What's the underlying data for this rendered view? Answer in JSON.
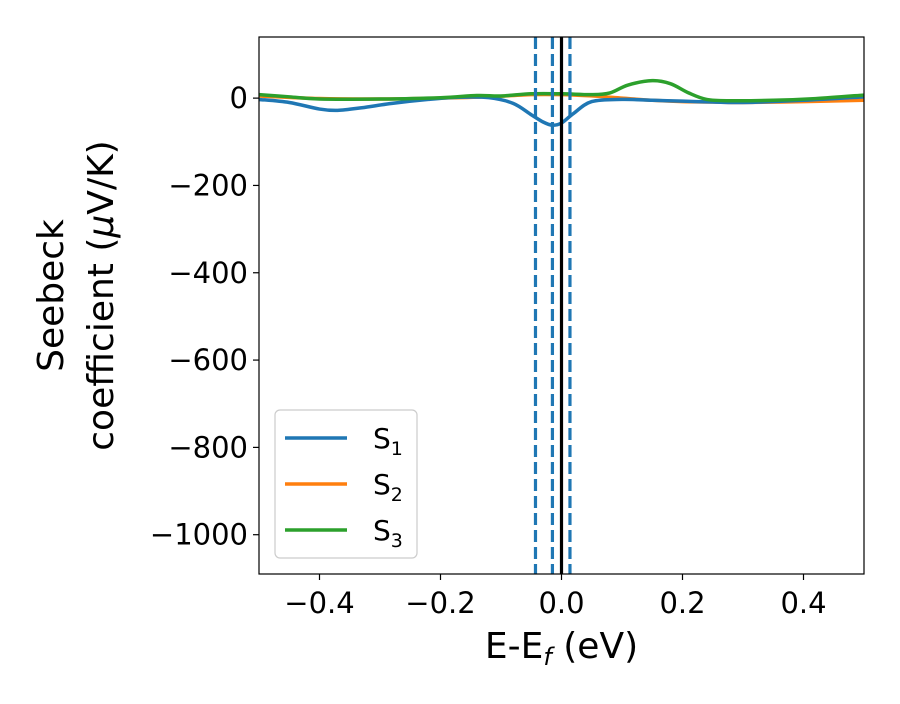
{
  "chart_data": {
    "type": "line",
    "title": "",
    "xlabel": "E-E",
    "xlabel_sub": "f",
    "xlabel_unit": " (eV)",
    "ylabel_line1": "Seebeck",
    "ylabel_line2": "coefficient  (",
    "ylabel_mu": "μ",
    "ylabel_unit": "V/K)",
    "xlim": [
      -0.5,
      0.5
    ],
    "ylim": [
      -1090,
      140
    ],
    "x_ticks": [
      -0.4,
      -0.2,
      0.0,
      0.2,
      0.4
    ],
    "x_tick_labels": [
      "−0.4",
      "−0.2",
      "0.0",
      "0.2",
      "0.4"
    ],
    "y_ticks": [
      0,
      -200,
      -400,
      -600,
      -800,
      -1000
    ],
    "y_tick_labels": [
      "0",
      "−200",
      "−400",
      "−600",
      "−800",
      "−1000"
    ],
    "grid": false,
    "legend_position": "lower-left",
    "series": [
      {
        "name": "S",
        "name_sub": "1",
        "color": "#1f77b4",
        "x": [
          -0.5,
          -0.45,
          -0.4,
          -0.37,
          -0.33,
          -0.28,
          -0.22,
          -0.17,
          -0.12,
          -0.08,
          -0.05,
          -0.03,
          -0.015,
          0.0,
          0.02,
          0.05,
          0.1,
          0.15,
          0.2,
          0.25,
          0.3,
          0.4,
          0.5
        ],
        "values": [
          -3,
          -10,
          -25,
          -28,
          -22,
          -12,
          -3,
          2,
          1,
          -12,
          -38,
          -55,
          -62,
          -57,
          -35,
          -8,
          -3,
          -5,
          -7,
          -9,
          -10,
          -5,
          3
        ]
      },
      {
        "name": "S",
        "name_sub": "2",
        "color": "#ff7f0e",
        "x": [
          -0.5,
          -0.4,
          -0.3,
          -0.2,
          -0.12,
          -0.05,
          0.0,
          0.05,
          0.1,
          0.15,
          0.2,
          0.25,
          0.3,
          0.4,
          0.5
        ],
        "values": [
          5,
          -1,
          -2,
          0,
          3,
          8,
          8,
          5,
          0,
          -5,
          -8,
          -9,
          -10,
          -8,
          -5
        ]
      },
      {
        "name": "S",
        "name_sub": "3",
        "color": "#2ca02c",
        "x": [
          -0.5,
          -0.45,
          -0.4,
          -0.3,
          -0.2,
          -0.14,
          -0.1,
          -0.05,
          0.0,
          0.05,
          0.08,
          0.11,
          0.15,
          0.18,
          0.21,
          0.24,
          0.28,
          0.35,
          0.42,
          0.5
        ],
        "values": [
          8,
          3,
          -2,
          -2,
          1,
          6,
          5,
          10,
          10,
          8,
          12,
          30,
          40,
          33,
          12,
          -3,
          -6,
          -5,
          -1,
          7
        ]
      }
    ],
    "vertical_lines": [
      {
        "x": 0.0,
        "color": "#000000",
        "style": "solid"
      },
      {
        "x": -0.043,
        "color": "#1f77b4",
        "style": "dashed"
      },
      {
        "x": -0.015,
        "color": "#1f77b4",
        "style": "dashed"
      },
      {
        "x": 0.014,
        "color": "#1f77b4",
        "style": "dashed"
      }
    ]
  }
}
